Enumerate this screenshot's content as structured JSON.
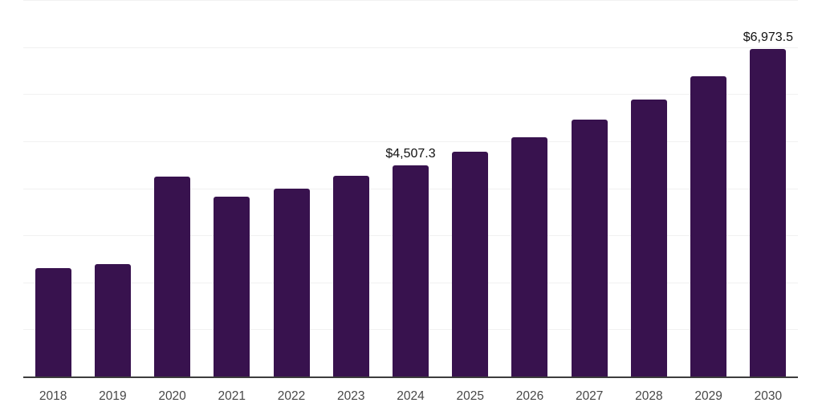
{
  "chart_data": {
    "type": "bar",
    "title": "",
    "xlabel": "",
    "ylabel": "",
    "categories": [
      "2018",
      "2019",
      "2020",
      "2021",
      "2022",
      "2023",
      "2024",
      "2025",
      "2026",
      "2027",
      "2028",
      "2029",
      "2030"
    ],
    "values": [
      2315,
      2400,
      4270,
      3845,
      4015,
      4285,
      4507.3,
      4800,
      5100,
      5475,
      5900,
      6390,
      6973.5
    ],
    "value_labels": [
      {
        "index": 6,
        "text": "$4,507.3"
      },
      {
        "index": 12,
        "text": "$6,973.5"
      }
    ],
    "ylim": [
      0,
      8000
    ],
    "grid_step": 1000,
    "grid": "horizontal-only",
    "legend": "none",
    "y_tick_labels_shown": false,
    "colors": {
      "bar": "#38124e",
      "gridline": "#f1f1f1",
      "axis_line": "#3d3d3d",
      "tick_label": "#474747",
      "value_label": "#111111",
      "background": "#ffffff"
    }
  }
}
